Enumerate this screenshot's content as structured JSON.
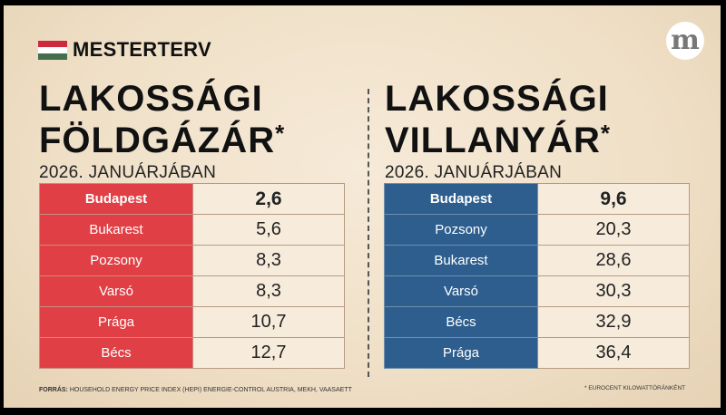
{
  "brand": {
    "name": "MESTERTERV",
    "flag_colors": [
      "#cd2a3e",
      "#ffffff",
      "#436f4d"
    ],
    "logo_letter": "m"
  },
  "gas": {
    "title_line1": "LAKOSSÁGI",
    "title_line2": "FÖLDGÁZÁR",
    "asterisk": "*",
    "subtitle": "2026. JANUÁRJÁBAN",
    "accent": "#e04045",
    "rows": [
      {
        "city": "Budapest",
        "value": "2,6"
      },
      {
        "city": "Bukarest",
        "value": "5,6"
      },
      {
        "city": "Pozsony",
        "value": "8,3"
      },
      {
        "city": "Varsó",
        "value": "8,3"
      },
      {
        "city": "Prága",
        "value": "10,7"
      },
      {
        "city": "Bécs",
        "value": "12,7"
      }
    ]
  },
  "electricity": {
    "title_line1": "LAKOSSÁGI",
    "title_line2": "VILLANYÁR",
    "asterisk": "*",
    "subtitle": "2026. JANUÁRJÁBAN",
    "accent": "#2d5e8e",
    "rows": [
      {
        "city": "Budapest",
        "value": "9,6"
      },
      {
        "city": "Pozsony",
        "value": "20,3"
      },
      {
        "city": "Bukarest",
        "value": "28,6"
      },
      {
        "city": "Varsó",
        "value": "30,3"
      },
      {
        "city": "Bécs",
        "value": "32,9"
      },
      {
        "city": "Prága",
        "value": "36,4"
      }
    ]
  },
  "footer": {
    "source_label": "FORRÁS:",
    "source_text": " HOUSEHOLD ENERGY PRICE INDEX (HEPI) ENERGIE-CONTROL AUSTRIA, MEKH, VAASAETT",
    "footnote": "* EUROCENT KILOWATTÓRÁNKÉNT"
  }
}
